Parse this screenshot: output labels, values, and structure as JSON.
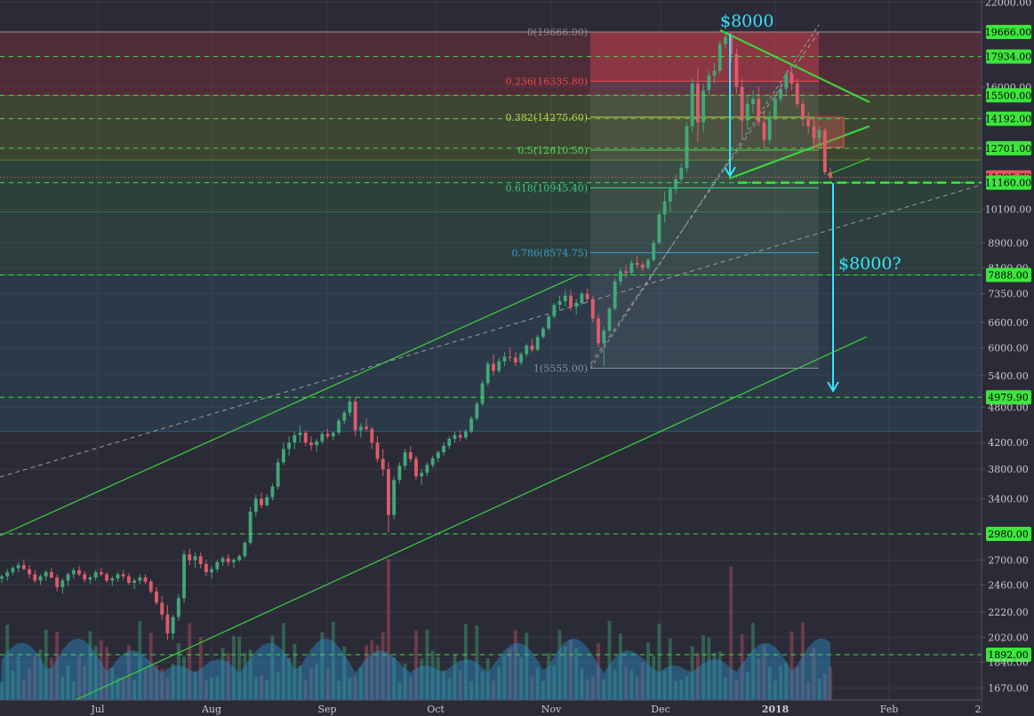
{
  "chart_data": {
    "type": "candlestick",
    "title": "",
    "colors": {
      "background": "#2b2b37",
      "up": "#41a77a",
      "down": "#e05a6a",
      "trend": "#3cd43c",
      "dashed_level": "#3ce63c",
      "annotation": "#33e6ff",
      "current_price_bg": "#e4545f",
      "level_label_bg": "#3ce63c"
    },
    "y_axis": {
      "scale": "log",
      "range": [
        1600,
        22000
      ],
      "ticks": [
        "22000.00",
        "19666.00",
        "17934.00",
        "16000.00",
        "15500.00",
        "14192.00",
        "12701.00",
        "11385.73",
        "11160.00",
        "10100.00",
        "8900.00",
        "8100.00",
        "7888.00",
        "7350.00",
        "6600.00",
        "6000.00",
        "5400.00",
        "4979.90",
        "4800.00",
        "4200.00",
        "3800.00",
        "3400.00",
        "2980.00",
        "2700.00",
        "2460.00",
        "2220.00",
        "2020.00",
        "1892.00",
        "1840.00",
        "1670.00"
      ],
      "tick_values": [
        22000,
        19666,
        17934,
        16000,
        15500,
        14192,
        12701,
        11385.73,
        11160,
        10100,
        8900,
        8100,
        7888,
        7350,
        6600,
        6000,
        5400,
        4979.9,
        4800,
        4200,
        3800,
        3400,
        2980,
        2700,
        2460,
        2220,
        2020,
        1892,
        1840,
        1670
      ],
      "highlighted_levels": [
        {
          "label": "19666.00",
          "value": 19666,
          "style": "level"
        },
        {
          "label": "17934.00",
          "value": 17934,
          "style": "level"
        },
        {
          "label": "15500.00",
          "value": 15500,
          "style": "level"
        },
        {
          "label": "14192.00",
          "value": 14192,
          "style": "level"
        },
        {
          "label": "12701.00",
          "value": 12701,
          "style": "level"
        },
        {
          "label": "11385.73",
          "value": 11385.73,
          "style": "current"
        },
        {
          "label": "11160.00",
          "value": 11160,
          "style": "level"
        },
        {
          "label": "7888.00",
          "value": 7888,
          "style": "level"
        },
        {
          "label": "4979.90",
          "value": 4979.9,
          "style": "level"
        },
        {
          "label": "2980.00",
          "value": 2980,
          "style": "level"
        },
        {
          "label": "1892.00",
          "value": 1892,
          "style": "level"
        }
      ]
    },
    "x_axis": {
      "labels": [
        "Jul",
        "Aug",
        "Sep",
        "Oct",
        "Nov",
        "Dec",
        "2018",
        "Feb",
        "2"
      ],
      "bold": [
        "2018"
      ]
    },
    "fib_retracement": [
      {
        "label": "0(19666.00)",
        "ratio": 0,
        "value": 19666,
        "color": "#8f8f99"
      },
      {
        "label": "0.236(16335.80)",
        "ratio": 0.236,
        "value": 16335.8,
        "color": "#f04848"
      },
      {
        "label": "0.382(14275.60)",
        "ratio": 0.382,
        "value": 14275.6,
        "color": "#c8d23c"
      },
      {
        "label": "0.5(12610.50)",
        "ratio": 0.5,
        "value": 12610.5,
        "color": "#5ad25a"
      },
      {
        "label": "0.618(10945.40)",
        "ratio": 0.618,
        "value": 10945.4,
        "color": "#3cc88c"
      },
      {
        "label": "0.786(8574.75)",
        "ratio": 0.786,
        "value": 8574.75,
        "color": "#3aa0c8"
      },
      {
        "label": "1(5555.00)",
        "ratio": 1,
        "value": 5555,
        "color": "#8f8f99"
      }
    ],
    "horizontal_zones": [
      {
        "from": 19666,
        "to": 15500,
        "color": "#b03040"
      },
      {
        "from": 15500,
        "to": 12150,
        "color": "#6e8a2a"
      },
      {
        "from": 12150,
        "to": 10000,
        "color": "#2f7a3a"
      },
      {
        "from": 10000,
        "to": 7888,
        "color": "#2f6f52"
      },
      {
        "from": 7888,
        "to": 4380,
        "color": "#2d5f78"
      }
    ],
    "annotations": [
      {
        "text": "$8000",
        "role": "top"
      },
      {
        "text": "$8000?",
        "role": "target"
      }
    ],
    "series": [
      {
        "name": "price",
        "ohlc": [
          [
            2520,
            2560,
            2480,
            2540
          ],
          [
            2540,
            2610,
            2500,
            2580
          ],
          [
            2580,
            2640,
            2550,
            2620
          ],
          [
            2620,
            2680,
            2580,
            2650
          ],
          [
            2650,
            2700,
            2600,
            2610
          ],
          [
            2610,
            2650,
            2520,
            2560
          ],
          [
            2560,
            2600,
            2480,
            2500
          ],
          [
            2500,
            2560,
            2460,
            2540
          ],
          [
            2540,
            2600,
            2500,
            2580
          ],
          [
            2580,
            2620,
            2520,
            2530
          ],
          [
            2530,
            2560,
            2400,
            2440
          ],
          [
            2440,
            2520,
            2380,
            2500
          ],
          [
            2500,
            2580,
            2450,
            2560
          ],
          [
            2560,
            2620,
            2520,
            2600
          ],
          [
            2600,
            2640,
            2540,
            2560
          ],
          [
            2560,
            2590,
            2480,
            2510
          ],
          [
            2510,
            2550,
            2470,
            2530
          ],
          [
            2530,
            2600,
            2500,
            2580
          ],
          [
            2580,
            2620,
            2540,
            2560
          ],
          [
            2560,
            2580,
            2480,
            2500
          ],
          [
            2500,
            2540,
            2450,
            2520
          ],
          [
            2520,
            2580,
            2490,
            2560
          ],
          [
            2560,
            2600,
            2510,
            2540
          ],
          [
            2540,
            2570,
            2460,
            2480
          ],
          [
            2480,
            2520,
            2420,
            2500
          ],
          [
            2500,
            2560,
            2470,
            2530
          ],
          [
            2530,
            2560,
            2470,
            2490
          ],
          [
            2490,
            2510,
            2380,
            2400
          ],
          [
            2400,
            2440,
            2280,
            2300
          ],
          [
            2300,
            2360,
            2160,
            2200
          ],
          [
            2200,
            2280,
            2000,
            2050
          ],
          [
            2050,
            2200,
            2000,
            2180
          ],
          [
            2180,
            2380,
            2150,
            2340
          ],
          [
            2340,
            2800,
            2300,
            2760
          ],
          [
            2760,
            2820,
            2650,
            2700
          ],
          [
            2700,
            2780,
            2620,
            2740
          ],
          [
            2740,
            2780,
            2620,
            2660
          ],
          [
            2660,
            2700,
            2540,
            2580
          ],
          [
            2580,
            2640,
            2520,
            2610
          ],
          [
            2610,
            2700,
            2580,
            2680
          ],
          [
            2680,
            2740,
            2640,
            2720
          ],
          [
            2720,
            2760,
            2640,
            2680
          ],
          [
            2680,
            2720,
            2620,
            2700
          ],
          [
            2700,
            2760,
            2680,
            2740
          ],
          [
            2740,
            2900,
            2720,
            2880
          ],
          [
            2880,
            3300,
            2860,
            3240
          ],
          [
            3240,
            3450,
            3180,
            3400
          ],
          [
            3400,
            3480,
            3280,
            3320
          ],
          [
            3320,
            3460,
            3300,
            3420
          ],
          [
            3420,
            3600,
            3380,
            3560
          ],
          [
            3560,
            3960,
            3520,
            3900
          ],
          [
            3900,
            4200,
            3860,
            4100
          ],
          [
            4100,
            4300,
            4000,
            4200
          ],
          [
            4200,
            4380,
            4100,
            4320
          ],
          [
            4320,
            4480,
            4200,
            4360
          ],
          [
            4360,
            4400,
            4150,
            4200
          ],
          [
            4200,
            4300,
            4080,
            4160
          ],
          [
            4160,
            4260,
            4060,
            4220
          ],
          [
            4220,
            4380,
            4180,
            4340
          ],
          [
            4340,
            4420,
            4260,
            4300
          ],
          [
            4300,
            4380,
            4240,
            4360
          ],
          [
            4360,
            4600,
            4320,
            4560
          ],
          [
            4560,
            4740,
            4500,
            4700
          ],
          [
            4700,
            4960,
            4640,
            4900
          ],
          [
            4900,
            4980,
            4300,
            4400
          ],
          [
            4400,
            4520,
            4280,
            4460
          ],
          [
            4460,
            4600,
            4380,
            4420
          ],
          [
            4420,
            4460,
            4100,
            4200
          ],
          [
            4200,
            4300,
            3900,
            3950
          ],
          [
            3950,
            4100,
            3700,
            3800
          ],
          [
            3800,
            3900,
            3000,
            3200
          ],
          [
            3200,
            3700,
            3150,
            3650
          ],
          [
            3650,
            3900,
            3600,
            3850
          ],
          [
            3850,
            4100,
            3800,
            4050
          ],
          [
            4050,
            4150,
            3900,
            3950
          ],
          [
            3950,
            4000,
            3650,
            3700
          ],
          [
            3700,
            3800,
            3580,
            3750
          ],
          [
            3750,
            3900,
            3700,
            3860
          ],
          [
            3860,
            4000,
            3820,
            3960
          ],
          [
            3960,
            4080,
            3900,
            4050
          ],
          [
            4050,
            4200,
            4000,
            4150
          ],
          [
            4150,
            4300,
            4100,
            4260
          ],
          [
            4260,
            4380,
            4200,
            4320
          ],
          [
            4320,
            4400,
            4220,
            4280
          ],
          [
            4280,
            4420,
            4250,
            4380
          ],
          [
            4380,
            4640,
            4350,
            4600
          ],
          [
            4600,
            4900,
            4560,
            4860
          ],
          [
            4860,
            5300,
            4820,
            5250
          ],
          [
            5250,
            5700,
            5200,
            5650
          ],
          [
            5650,
            5850,
            5400,
            5500
          ],
          [
            5500,
            5780,
            5450,
            5700
          ],
          [
            5700,
            5900,
            5600,
            5800
          ],
          [
            5800,
            6000,
            5700,
            5780
          ],
          [
            5780,
            5900,
            5600,
            5680
          ],
          [
            5680,
            5900,
            5620,
            5860
          ],
          [
            5860,
            6100,
            5800,
            6050
          ],
          [
            6050,
            6200,
            5900,
            5950
          ],
          [
            5950,
            6300,
            5920,
            6250
          ],
          [
            6250,
            6500,
            6200,
            6450
          ],
          [
            6450,
            6800,
            6400,
            6750
          ],
          [
            6750,
            7100,
            6700,
            7050
          ],
          [
            7050,
            7300,
            6900,
            7150
          ],
          [
            7150,
            7450,
            7000,
            7300
          ],
          [
            7300,
            7450,
            6900,
            7000
          ],
          [
            7000,
            7200,
            6800,
            7100
          ],
          [
            7100,
            7400,
            7050,
            7350
          ],
          [
            7350,
            7500,
            7100,
            7200
          ],
          [
            7200,
            7300,
            6600,
            6700
          ],
          [
            6700,
            6800,
            6000,
            6100
          ],
          [
            6100,
            6500,
            5600,
            6400
          ],
          [
            6400,
            7000,
            6350,
            6950
          ],
          [
            6950,
            7800,
            6900,
            7700
          ],
          [
            7700,
            8100,
            7600,
            8000
          ],
          [
            8000,
            8200,
            7800,
            7950
          ],
          [
            7950,
            8350,
            7900,
            8250
          ],
          [
            8250,
            8500,
            8100,
            8200
          ],
          [
            8200,
            8300,
            8000,
            8100
          ],
          [
            8100,
            8400,
            8050,
            8350
          ],
          [
            8350,
            9000,
            8300,
            8900
          ],
          [
            8900,
            10000,
            8850,
            9900
          ],
          [
            9900,
            10800,
            9600,
            10400
          ],
          [
            10400,
            11000,
            10000,
            10900
          ],
          [
            10900,
            11500,
            10700,
            11300
          ],
          [
            11300,
            12000,
            11100,
            11800
          ],
          [
            11800,
            14000,
            11600,
            13800
          ],
          [
            13800,
            16500,
            13500,
            16200
          ],
          [
            16200,
            17200,
            13000,
            14000
          ],
          [
            14000,
            16200,
            13500,
            15800
          ],
          [
            15800,
            17000,
            15500,
            16700
          ],
          [
            16700,
            17500,
            16200,
            17000
          ],
          [
            17000,
            19000,
            16800,
            18800
          ],
          [
            18800,
            19666,
            18500,
            19300
          ],
          [
            19300,
            19600,
            17500,
            18100
          ],
          [
            18100,
            18500,
            15600,
            16000
          ],
          [
            16000,
            16500,
            13200,
            14100
          ],
          [
            14100,
            15500,
            13600,
            15000
          ],
          [
            15000,
            15800,
            14500,
            15300
          ],
          [
            15300,
            16000,
            13800,
            14000
          ],
          [
            14000,
            14600,
            12700,
            13100
          ],
          [
            13100,
            14600,
            12900,
            14300
          ],
          [
            14300,
            15500,
            14100,
            15300
          ],
          [
            15300,
            16200,
            15100,
            15900
          ],
          [
            15900,
            17000,
            15500,
            16800
          ],
          [
            16800,
            17200,
            15800,
            16200
          ],
          [
            16200,
            16500,
            14800,
            15000
          ],
          [
            15000,
            15300,
            13800,
            14200
          ],
          [
            14200,
            14600,
            13400,
            13800
          ],
          [
            13800,
            14200,
            12600,
            13200
          ],
          [
            13200,
            13800,
            12900,
            13600
          ],
          [
            13600,
            13700,
            11500,
            11600
          ],
          [
            11600,
            11800,
            11300,
            11386
          ]
        ]
      }
    ]
  }
}
